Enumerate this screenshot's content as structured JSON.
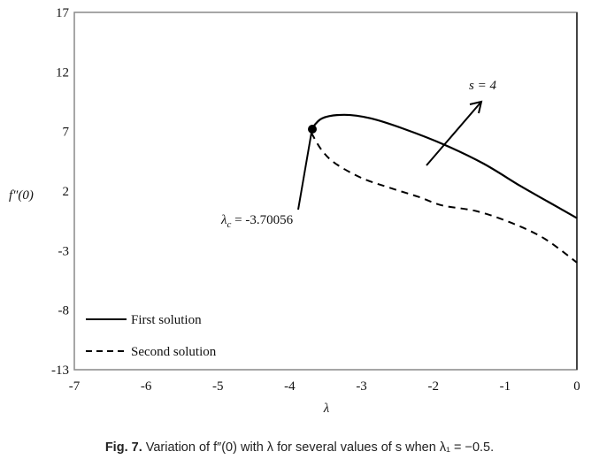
{
  "chart_data": {
    "type": "line",
    "title": "",
    "xlabel": "λ",
    "ylabel": "f″(0)",
    "xlim": [
      -7,
      0
    ],
    "ylim": [
      -13,
      17
    ],
    "x_ticks": [
      "-7",
      "-6",
      "-5",
      "-4",
      "-3",
      "-2",
      "-1",
      "0"
    ],
    "y_ticks": [
      "17",
      "12",
      "7",
      "2",
      "-3",
      "-8",
      "-13"
    ],
    "grid": false,
    "legend_position": "lower-left",
    "series": [
      {
        "name": "First solution",
        "style": "solid",
        "x": [
          -3.7,
          -3.55,
          -3.24,
          -2.87,
          -2.4,
          -1.85,
          -1.3,
          -0.78,
          -0.4,
          0
        ],
        "y": [
          7.17,
          8.1,
          8.4,
          8.1,
          7.2,
          5.9,
          4.3,
          2.4,
          1.1,
          -0.27
        ]
      },
      {
        "name": "Second solution",
        "style": "dashed",
        "x": [
          -3.7,
          -3.55,
          -3.36,
          -3.0,
          -2.62,
          -2.2,
          -1.88,
          -1.39,
          -0.9,
          -0.45,
          0
        ],
        "y": [
          6.9,
          5.4,
          4.3,
          3.1,
          2.3,
          1.5,
          0.8,
          0.3,
          -0.7,
          -2.0,
          -4.0
        ]
      }
    ],
    "annotations": [
      {
        "text": "λc = -3.70056",
        "point": [
          -3.70056,
          7.17
        ],
        "type": "critical-point"
      },
      {
        "text": "s = 4",
        "type": "arrow",
        "from": [
          -2.08,
          3.2
        ],
        "to": [
          -1.32,
          8.6
        ]
      }
    ]
  },
  "annotations": {
    "critical_label_symbol": "λ",
    "critical_label_sub": "c",
    "critical_label_value": " = -3.70056",
    "s_label": "s = 4"
  },
  "legend": {
    "first": "First solution",
    "second": "Second solution"
  },
  "axes": {
    "xlabel": "λ",
    "ylabel": "f″(0)"
  },
  "caption": {
    "prefix": "Fig. 7.",
    "text": " Variation of f″(0) with λ for several values of s when λ₁ = −0.5."
  }
}
